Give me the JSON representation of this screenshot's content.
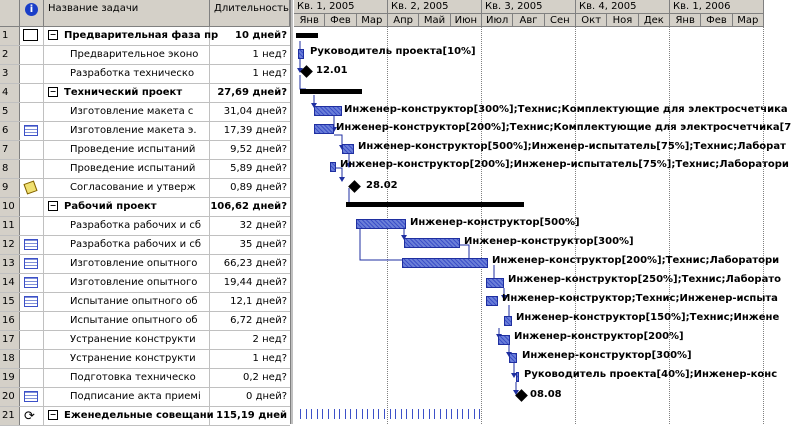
{
  "table": {
    "headers": {
      "name": "Название задачи",
      "duration": "Длительность"
    },
    "rows": [
      {
        "id": "1",
        "name": "Предварительная фаза пр",
        "duration": "10 дней?",
        "bold": true,
        "summary": true,
        "indicator": "selected-box"
      },
      {
        "id": "2",
        "name": "Предварительное эконо",
        "duration": "1 нед?",
        "bold": false
      },
      {
        "id": "3",
        "name": "Разработка техническо",
        "duration": "1 нед?",
        "bold": false
      },
      {
        "id": "4",
        "name": "Технический проект",
        "duration": "27,69 дней?",
        "bold": true,
        "summary": true
      },
      {
        "id": "5",
        "name": "Изготовление макета с",
        "duration": "31,04 дней?",
        "bold": false
      },
      {
        "id": "6",
        "name": "Изготовление макета э.",
        "duration": "17,39 дней?",
        "bold": false,
        "indicator": "table-icon"
      },
      {
        "id": "7",
        "name": "Проведение испытаний",
        "duration": "9,52 дней?",
        "bold": false
      },
      {
        "id": "8",
        "name": "Проведение испытаний",
        "duration": "5,89 дней?",
        "bold": false
      },
      {
        "id": "9",
        "name": "Согласование и утверж",
        "duration": "0,89 дней?",
        "bold": false,
        "indicator": "note-icon"
      },
      {
        "id": "10",
        "name": "Рабочий проект",
        "duration": "106,62 дней?",
        "bold": true,
        "summary": true
      },
      {
        "id": "11",
        "name": "Разработка рабочих и сб",
        "duration": "32 дней?",
        "bold": false
      },
      {
        "id": "12",
        "name": "Разработка рабочих и сб",
        "duration": "35 дней?",
        "bold": false,
        "indicator": "table-icon"
      },
      {
        "id": "13",
        "name": "Изготовление опытного",
        "duration": "66,23 дней?",
        "bold": false,
        "indicator": "table-icon"
      },
      {
        "id": "14",
        "name": "Изготовление опытного",
        "duration": "19,44 дней?",
        "bold": false,
        "indicator": "table-icon"
      },
      {
        "id": "15",
        "name": "Испытание опытного об",
        "duration": "12,1 дней?",
        "bold": false,
        "indicator": "table-icon"
      },
      {
        "id": "16",
        "name": "Испытание опытного об",
        "duration": "6,72 дней?",
        "bold": false
      },
      {
        "id": "17",
        "name": "Устранение конструкти",
        "duration": "2 нед?",
        "bold": false
      },
      {
        "id": "18",
        "name": "Устранение конструкти",
        "duration": "1 нед?",
        "bold": false
      },
      {
        "id": "19",
        "name": "Подготовка техническо",
        "duration": "0,2 нед?",
        "bold": false
      },
      {
        "id": "20",
        "name": "Подписание акта приемі",
        "duration": "0 дней?",
        "bold": false,
        "indicator": "table-icon"
      },
      {
        "id": "21",
        "name": "Еженедельные совещани",
        "duration": "115,19 дней",
        "bold": true,
        "summary": true,
        "indicator": "recurring-icon"
      }
    ]
  },
  "timescale": {
    "quarters": [
      "Кв. 1, 2005",
      "Кв. 2, 2005",
      "Кв. 3, 2005",
      "Кв. 4, 2005",
      "Кв. 1, 2006"
    ],
    "months": [
      "Янв",
      "Фев",
      "Мар",
      "Апр",
      "Май",
      "Июн",
      "Июл",
      "Авг",
      "Сен",
      "Окт",
      "Ноя",
      "Дек",
      "Янв",
      "Фев",
      "Мар"
    ]
  },
  "gantt_labels": {
    "r2": "Руководитель проекта[10%]",
    "r3": "12.01",
    "r5": "Инженер-конструктор[300%];Технис;Комплектующие для электросчетчика",
    "r6": "Инженер-конструктор[200%];Технис;Комплектующие для электросчетчика[7",
    "r7": "Инженер-конструктор[500%];Инженер-испытатель[75%];Технис;Лаборат",
    "r8": "Инженер-конструктор[200%];Инженер-испытатель[75%];Технис;Лаборатори",
    "r9": "28.02",
    "r11": "Инженер-конструктор[500%]",
    "r12": "Инженер-конструктор[300%]",
    "r13": "Инженер-конструктор[200%];Технис;Лаборатори",
    "r14": "Инженер-конструктор[250%];Технис;Лаборато",
    "r15": "Инженер-конструктор;Технис;Инженер-испыта",
    "r16": "Инженер-конструктор[150%];Технис;Инжене",
    "r17": "Инженер-конструктор[200%]",
    "r18": "Инженер-конструктор[300%]",
    "r19": "Руководитель проекта[40%];Инженер-конс",
    "r20": "08.08"
  }
}
